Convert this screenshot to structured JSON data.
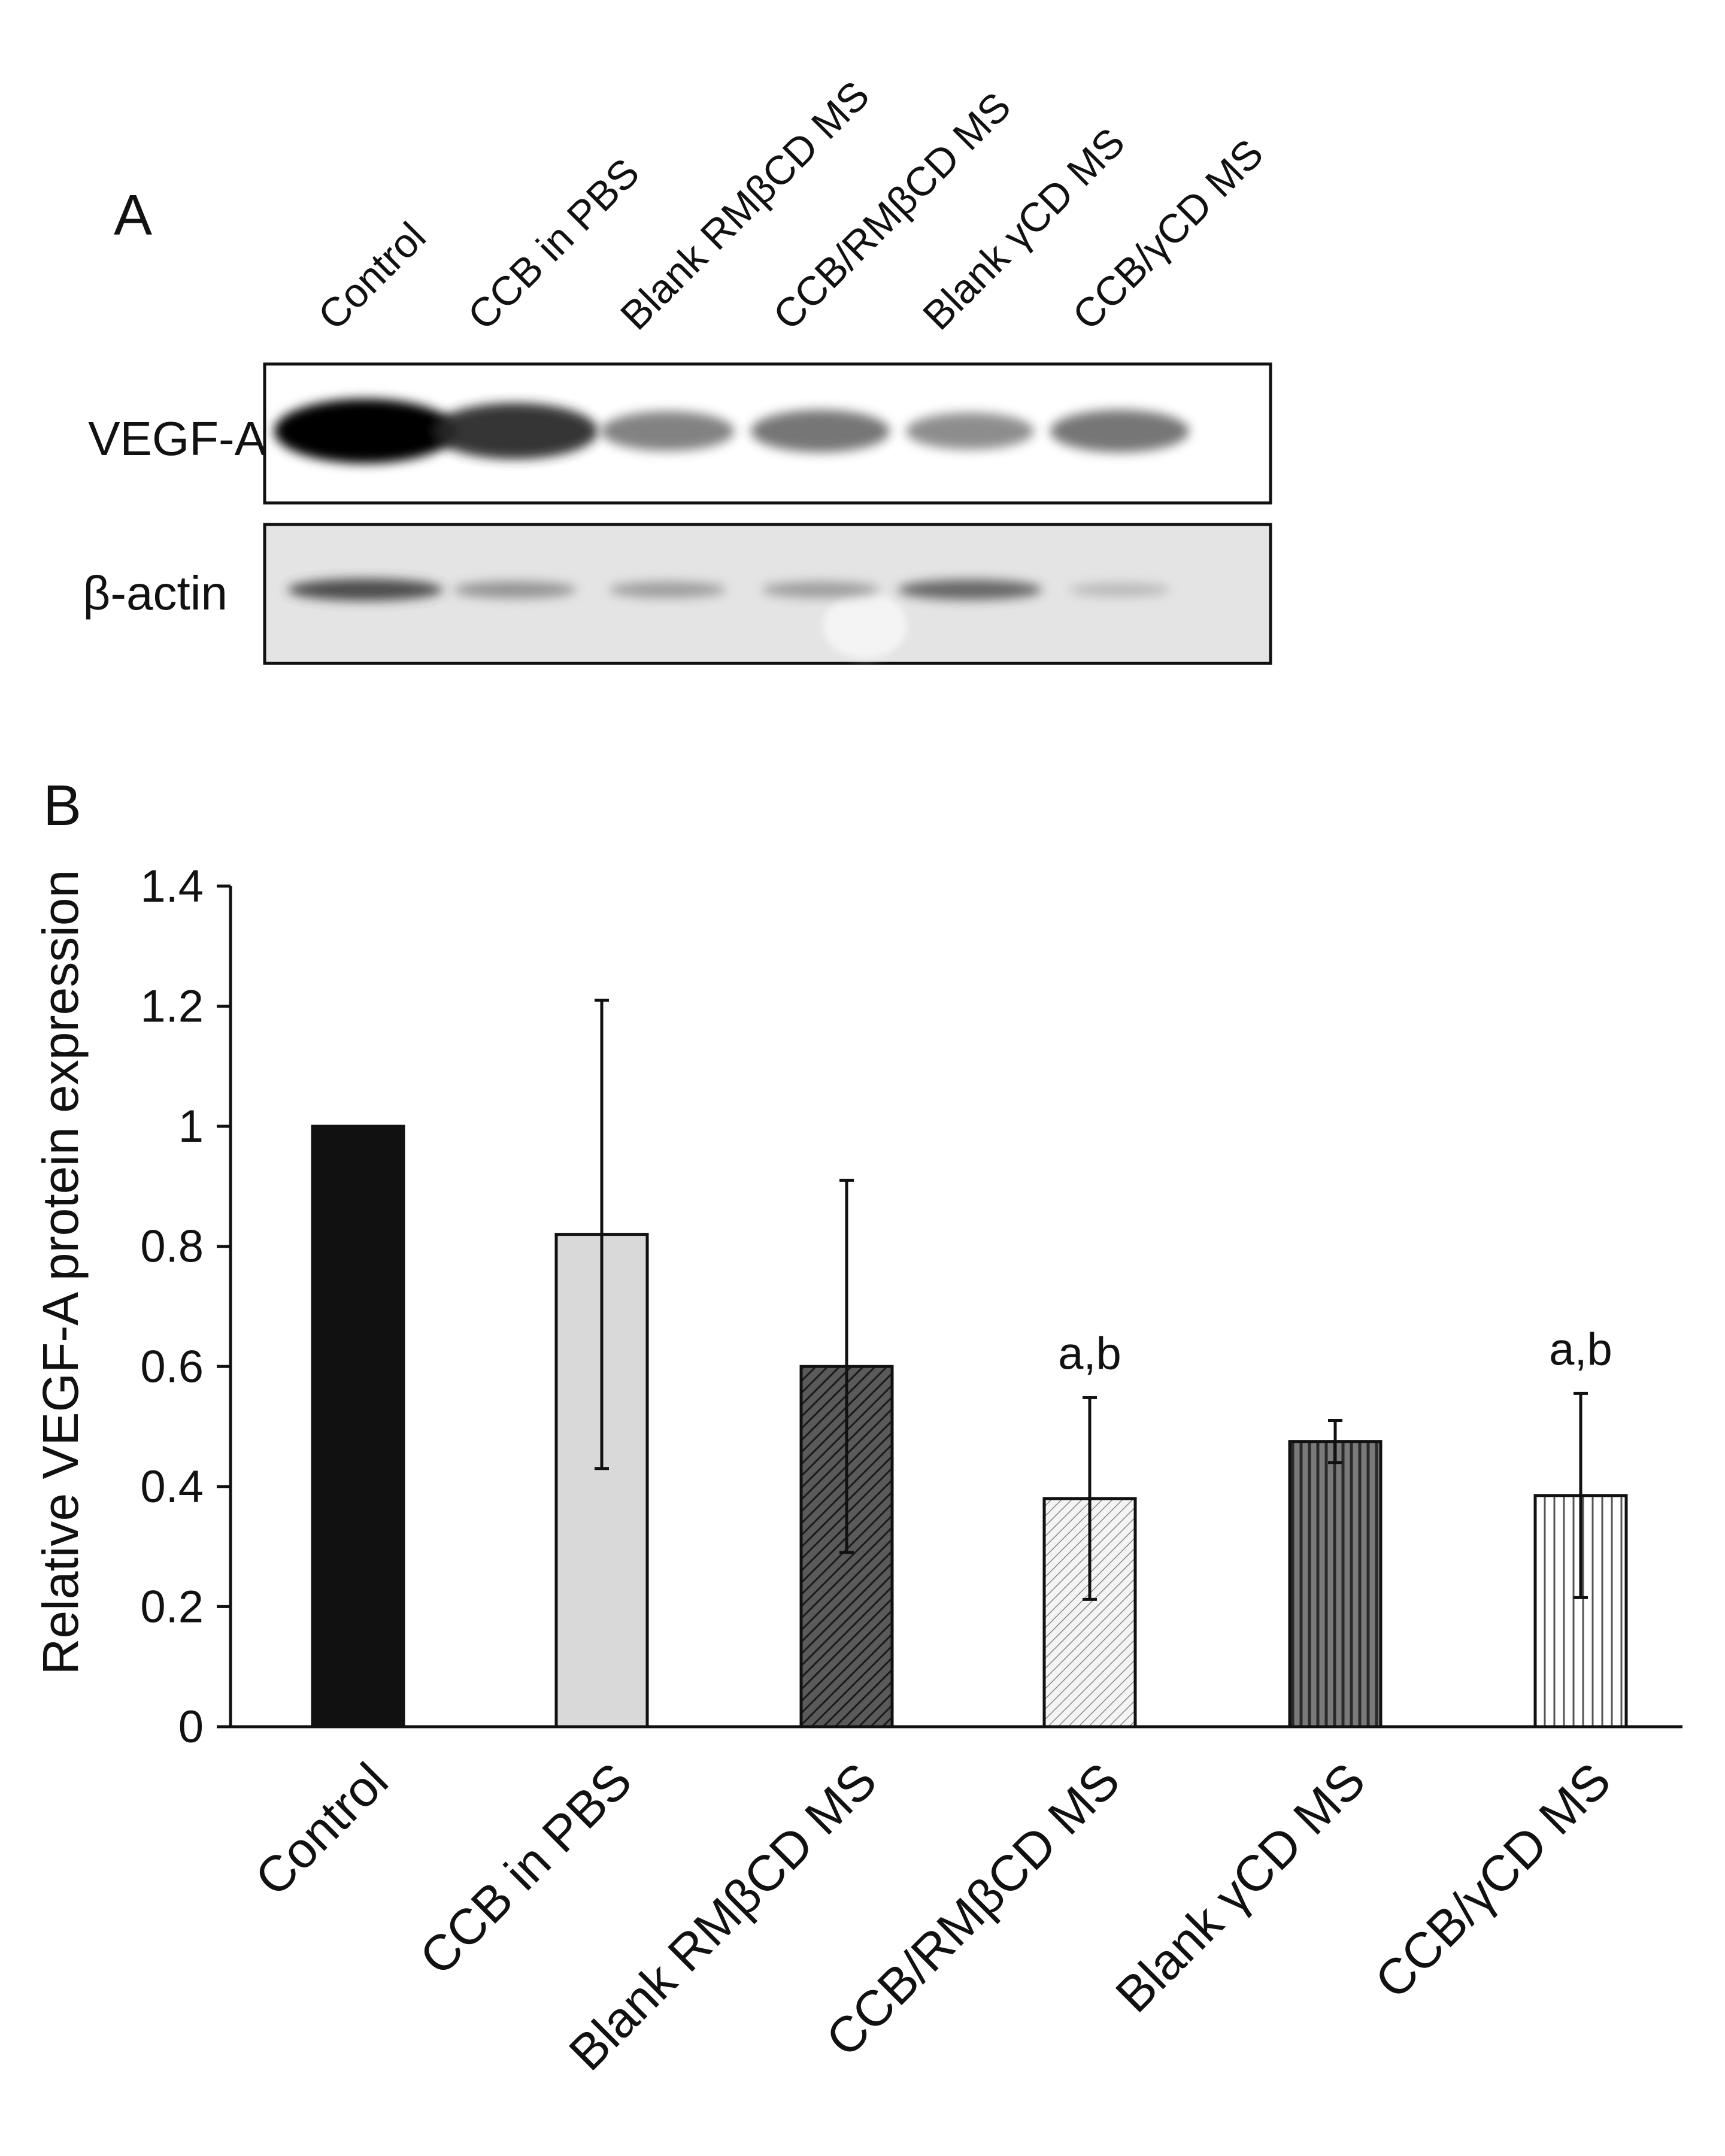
{
  "panel_a": {
    "label": "A",
    "lanes": [
      "Control",
      "CCB in PBS",
      "Blank RMβCD MS",
      "CCB/RMβCD MS",
      "Blank γCD MS",
      "CCB/γCD MS"
    ],
    "blots": [
      {
        "name": "VEGF-A",
        "band_intensity": [
          1.0,
          0.85,
          0.55,
          0.6,
          0.5,
          0.6
        ]
      },
      {
        "name": "β-actin",
        "band_intensity": [
          0.75,
          0.45,
          0.4,
          0.4,
          0.65,
          0.25
        ]
      }
    ]
  },
  "panel_b_label": "B",
  "chart_data": {
    "type": "bar",
    "title": "",
    "xlabel": "",
    "ylabel": "Relative VEGF-A protein expression",
    "ylim": [
      0,
      1.4
    ],
    "yticks": [
      0,
      0.2,
      0.4,
      0.6,
      0.8,
      1,
      1.2,
      1.4
    ],
    "ytick_labels": [
      "0",
      "0.2",
      "0.4",
      "0.6",
      "0.8",
      "1",
      "1.2",
      "1.4"
    ],
    "categories": [
      "Control",
      "CCB in PBS",
      "Blank RMβCD MS",
      "CCB/RMβCD MS",
      "Blank γCD MS",
      "CCB/γCD MS"
    ],
    "values": [
      1.0,
      0.82,
      0.6,
      0.38,
      0.475,
      0.385
    ],
    "errors": [
      null,
      0.39,
      0.31,
      0.168,
      0.035,
      0.17
    ],
    "significance": [
      "",
      "",
      "",
      "a,b",
      "",
      "a,b"
    ],
    "fills": [
      "#111111",
      "#d9d9d9",
      "#555555",
      "#f2f2f2",
      "#777777",
      "#ffffff"
    ],
    "patterns": [
      "solid",
      "solid",
      "diagonal-dense-dark",
      "diagonal-light",
      "vertical-dark",
      "vertical-light"
    ]
  }
}
